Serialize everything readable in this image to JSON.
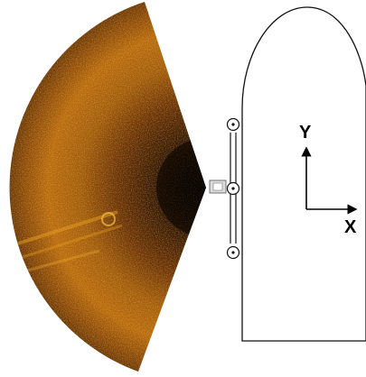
{
  "diagram": {
    "axis_x_label": "X",
    "axis_y_label": "Y",
    "colors": {
      "background": "#ffffff",
      "outline": "#111111",
      "sonar_dark": "#120600",
      "sonar_mid": "#6b3206",
      "sonar_bright": "#c8780c",
      "sonar_highlight": "#f0b030"
    },
    "icons": [
      "sonar-fan-image",
      "hull-outline",
      "sonar-mount-bar",
      "pivot-circle-icon",
      "coordinate-axes"
    ]
  }
}
